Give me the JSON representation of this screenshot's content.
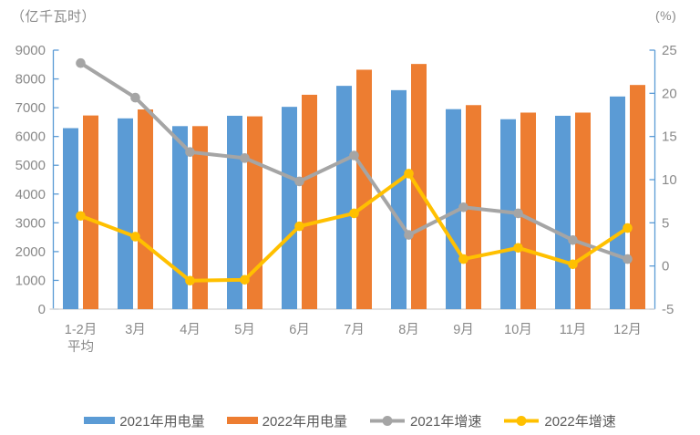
{
  "chart_data": {
    "type": "combo-bar-line",
    "categories": [
      "1-2月\n平均",
      "3月",
      "4月",
      "5月",
      "6月",
      "7月",
      "8月",
      "9月",
      "10月",
      "11月",
      "12月"
    ],
    "series": [
      {
        "name": "2021年用电量",
        "type": "bar",
        "axis": "left",
        "color": "#5B9BD5",
        "values": [
          6290,
          6630,
          6360,
          6720,
          7030,
          7760,
          7610,
          6950,
          6600,
          6720,
          7390
        ]
      },
      {
        "name": "2022年用电量",
        "type": "bar",
        "axis": "left",
        "color": "#ED7D31",
        "values": [
          6730,
          6940,
          6360,
          6700,
          7450,
          8320,
          8520,
          7090,
          6830,
          6830,
          7790
        ]
      },
      {
        "name": "2021年增速",
        "type": "line",
        "axis": "right",
        "color": "#A5A5A5",
        "values": [
          23.5,
          19.5,
          13.2,
          12.5,
          9.8,
          12.8,
          3.6,
          6.8,
          6.1,
          3.0,
          0.8
        ]
      },
      {
        "name": "2022年增速",
        "type": "line",
        "axis": "right",
        "color": "#FFC000",
        "values": [
          5.8,
          3.4,
          -1.7,
          -1.6,
          4.6,
          6.1,
          10.7,
          0.8,
          2.1,
          0.2,
          4.4
        ]
      }
    ],
    "left_axis": {
      "title": "（亿千瓦时）",
      "min": 0,
      "max": 9000,
      "step": 1000
    },
    "right_axis": {
      "title": "(%)",
      "min": -5,
      "max": 25,
      "step": 5
    },
    "legend_position": "bottom",
    "grid": false
  },
  "colors": {
    "axis_line": "#5B9BD5",
    "baseline": "#D9D9D9",
    "tick_label": "#898989",
    "legend_text": "#595959"
  }
}
